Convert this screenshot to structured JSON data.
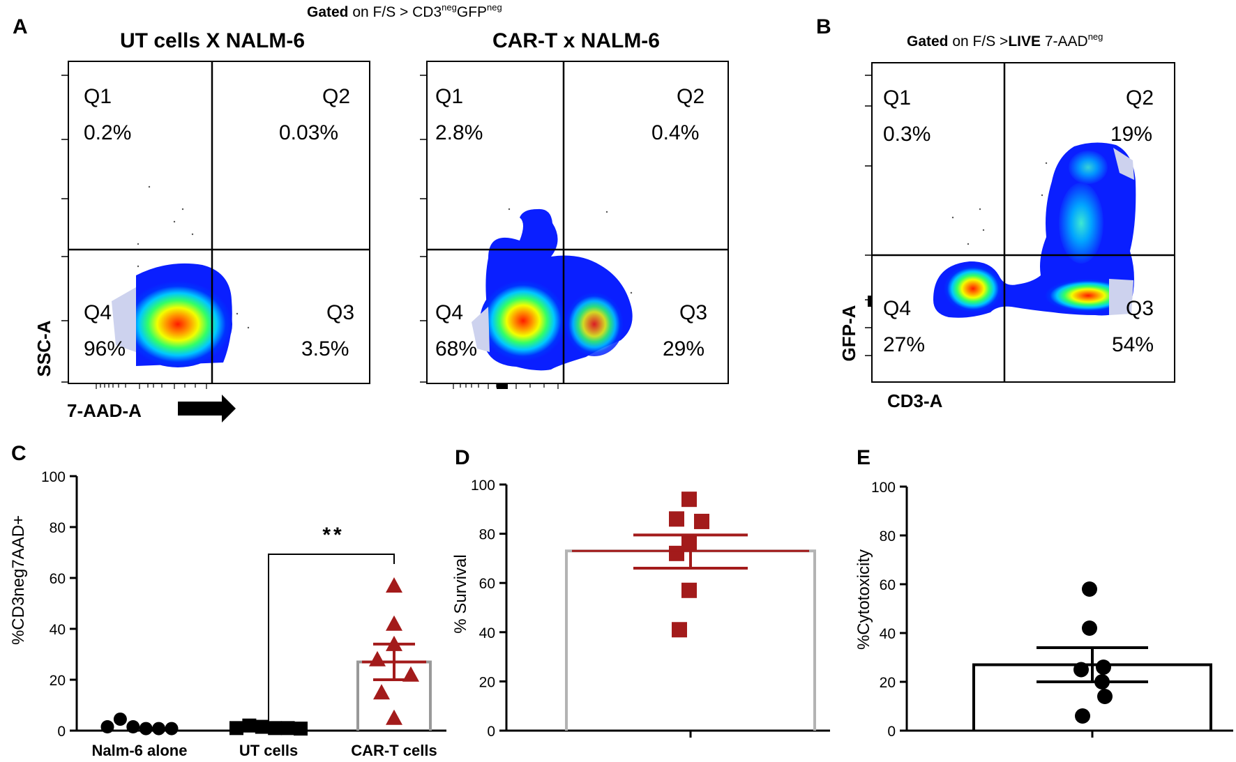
{
  "panels": {
    "A": "A",
    "B": "B",
    "C": "C",
    "D": "D",
    "E": "E"
  },
  "panel_a": {
    "gate_bold": "Gated",
    "gate_rest": " on F/S > CD3",
    "gate_sup1": "neg",
    "gate_mid": "GFP",
    "gate_sup2": "neg",
    "plot1_title": "UT cells X NALM-6",
    "plot2_title": "CAR-T x NALM-6",
    "ylabel": "SSC-A",
    "xlabel": "7-AAD-A"
  },
  "panel_b": {
    "gate_bold": "Gated",
    "gate_rest": " on F/S >",
    "gate_live": "LIVE",
    "gate_tail": " 7-AAD",
    "gate_sup": "neg",
    "ylabel": "GFP-A",
    "xlabel": "CD3-A"
  },
  "colors": {
    "bar_gray": "#999999",
    "marker_black": "#000000",
    "marker_red": "#a31b1b",
    "density_hot": "#ff2a00",
    "density_cold": "#0b2cff"
  },
  "chart_data": [
    {
      "panel": "A-left",
      "type": "scatter",
      "title": "UT cells X NALM-6",
      "xlabel": "7-AAD-A",
      "ylabel": "SSC-A",
      "quadrants": [
        {
          "name": "Q1",
          "value": "0.2%"
        },
        {
          "name": "Q2",
          "value": "0.03%"
        },
        {
          "name": "Q3",
          "value": "3.5%"
        },
        {
          "name": "Q4",
          "value": "96%"
        }
      ]
    },
    {
      "panel": "A-right",
      "type": "scatter",
      "title": "CAR-T x NALM-6",
      "quadrants": [
        {
          "name": "Q1",
          "value": "2.8%"
        },
        {
          "name": "Q2",
          "value": "0.4%"
        },
        {
          "name": "Q3",
          "value": "29%"
        },
        {
          "name": "Q4",
          "value": "68%"
        }
      ]
    },
    {
      "panel": "B",
      "type": "scatter",
      "xlabel": "CD3-A",
      "ylabel": "GFP-A",
      "quadrants": [
        {
          "name": "Q1",
          "value": "0.3%"
        },
        {
          "name": "Q2",
          "value": "19%"
        },
        {
          "name": "Q3",
          "value": "54%"
        },
        {
          "name": "Q4",
          "value": "27%"
        }
      ]
    },
    {
      "panel": "C",
      "type": "bar",
      "ylabel": "%CD3neg7AAD+",
      "ylim": [
        0,
        100
      ],
      "yticks": [
        "0",
        "20",
        "40",
        "60",
        "80",
        "100"
      ],
      "categories": [
        "Nalm-6 alone",
        "UT cells",
        "CAR-T cells"
      ],
      "means": [
        1.5,
        1.5,
        27
      ],
      "sem": [
        0,
        0,
        7
      ],
      "points": [
        [
          1.5,
          4.5,
          1.5,
          0.8,
          0.8,
          0.8
        ],
        [
          1.0,
          2.0,
          1.5,
          1.0,
          1.0,
          0.8
        ],
        [
          57,
          42,
          34,
          28,
          22,
          15,
          5
        ]
      ],
      "markers": [
        "circle",
        "square",
        "triangle"
      ],
      "significance": "**"
    },
    {
      "panel": "D",
      "type": "bar",
      "ylabel": "% Survival",
      "ylim": [
        0,
        100
      ],
      "yticks": [
        "0",
        "20",
        "40",
        "60",
        "80",
        "100"
      ],
      "mean": 73,
      "sem_low": 66,
      "sem_high": 79.5,
      "points": [
        94,
        86,
        85,
        76,
        72,
        57,
        41
      ]
    },
    {
      "panel": "E",
      "type": "bar",
      "ylabel": "%Cytotoxicity",
      "ylim": [
        0,
        100
      ],
      "yticks": [
        "0",
        "20",
        "40",
        "60",
        "80",
        "100"
      ],
      "mean": 27,
      "sem_low": 20,
      "sem_high": 34,
      "points": [
        58,
        42,
        26,
        25,
        20,
        14,
        6
      ]
    }
  ]
}
